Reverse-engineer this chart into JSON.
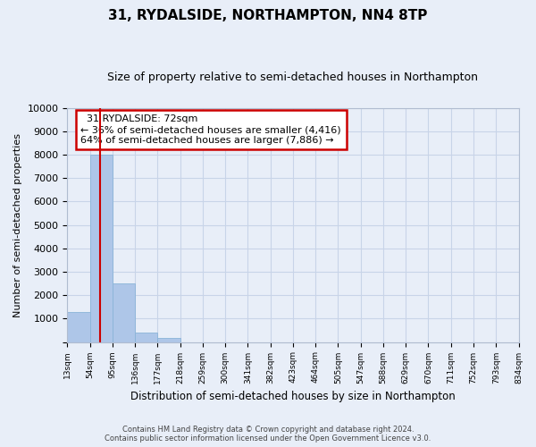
{
  "title": "31, RYDALSIDE, NORTHAMPTON, NN4 8TP",
  "subtitle": "Size of property relative to semi-detached houses in Northampton",
  "xlabel": "Distribution of semi-detached houses by size in Northampton",
  "ylabel": "Number of semi-detached properties",
  "bin_labels": [
    "13sqm",
    "54sqm",
    "95sqm",
    "136sqm",
    "177sqm",
    "218sqm",
    "259sqm",
    "300sqm",
    "341sqm",
    "382sqm",
    "423sqm",
    "464sqm",
    "505sqm",
    "547sqm",
    "588sqm",
    "629sqm",
    "670sqm",
    "711sqm",
    "752sqm",
    "793sqm",
    "834sqm"
  ],
  "bar_values": [
    1300,
    8000,
    2500,
    400,
    175,
    0,
    0,
    0,
    0,
    0,
    0,
    0,
    0,
    0,
    0,
    0,
    0,
    0,
    0,
    0
  ],
  "bar_color": "#aec6e8",
  "bar_edge_color": "#8ab4d8",
  "property_line_x": 1.44,
  "annotation_title": "31 RYDALSIDE: 72sqm",
  "annotation_line1": "← 36% of semi-detached houses are smaller (4,416)",
  "annotation_line2": "64% of semi-detached houses are larger (7,886) →",
  "annotation_box_color": "#ffffff",
  "annotation_box_edge": "#cc0000",
  "property_line_color": "#cc0000",
  "grid_color": "#c8d4e8",
  "background_color": "#e8eef8",
  "ylim": [
    0,
    10000
  ],
  "yticks": [
    0,
    1000,
    2000,
    3000,
    4000,
    5000,
    6000,
    7000,
    8000,
    9000,
    10000
  ],
  "footer_line1": "Contains HM Land Registry data © Crown copyright and database right 2024.",
  "footer_line2": "Contains public sector information licensed under the Open Government Licence v3.0."
}
